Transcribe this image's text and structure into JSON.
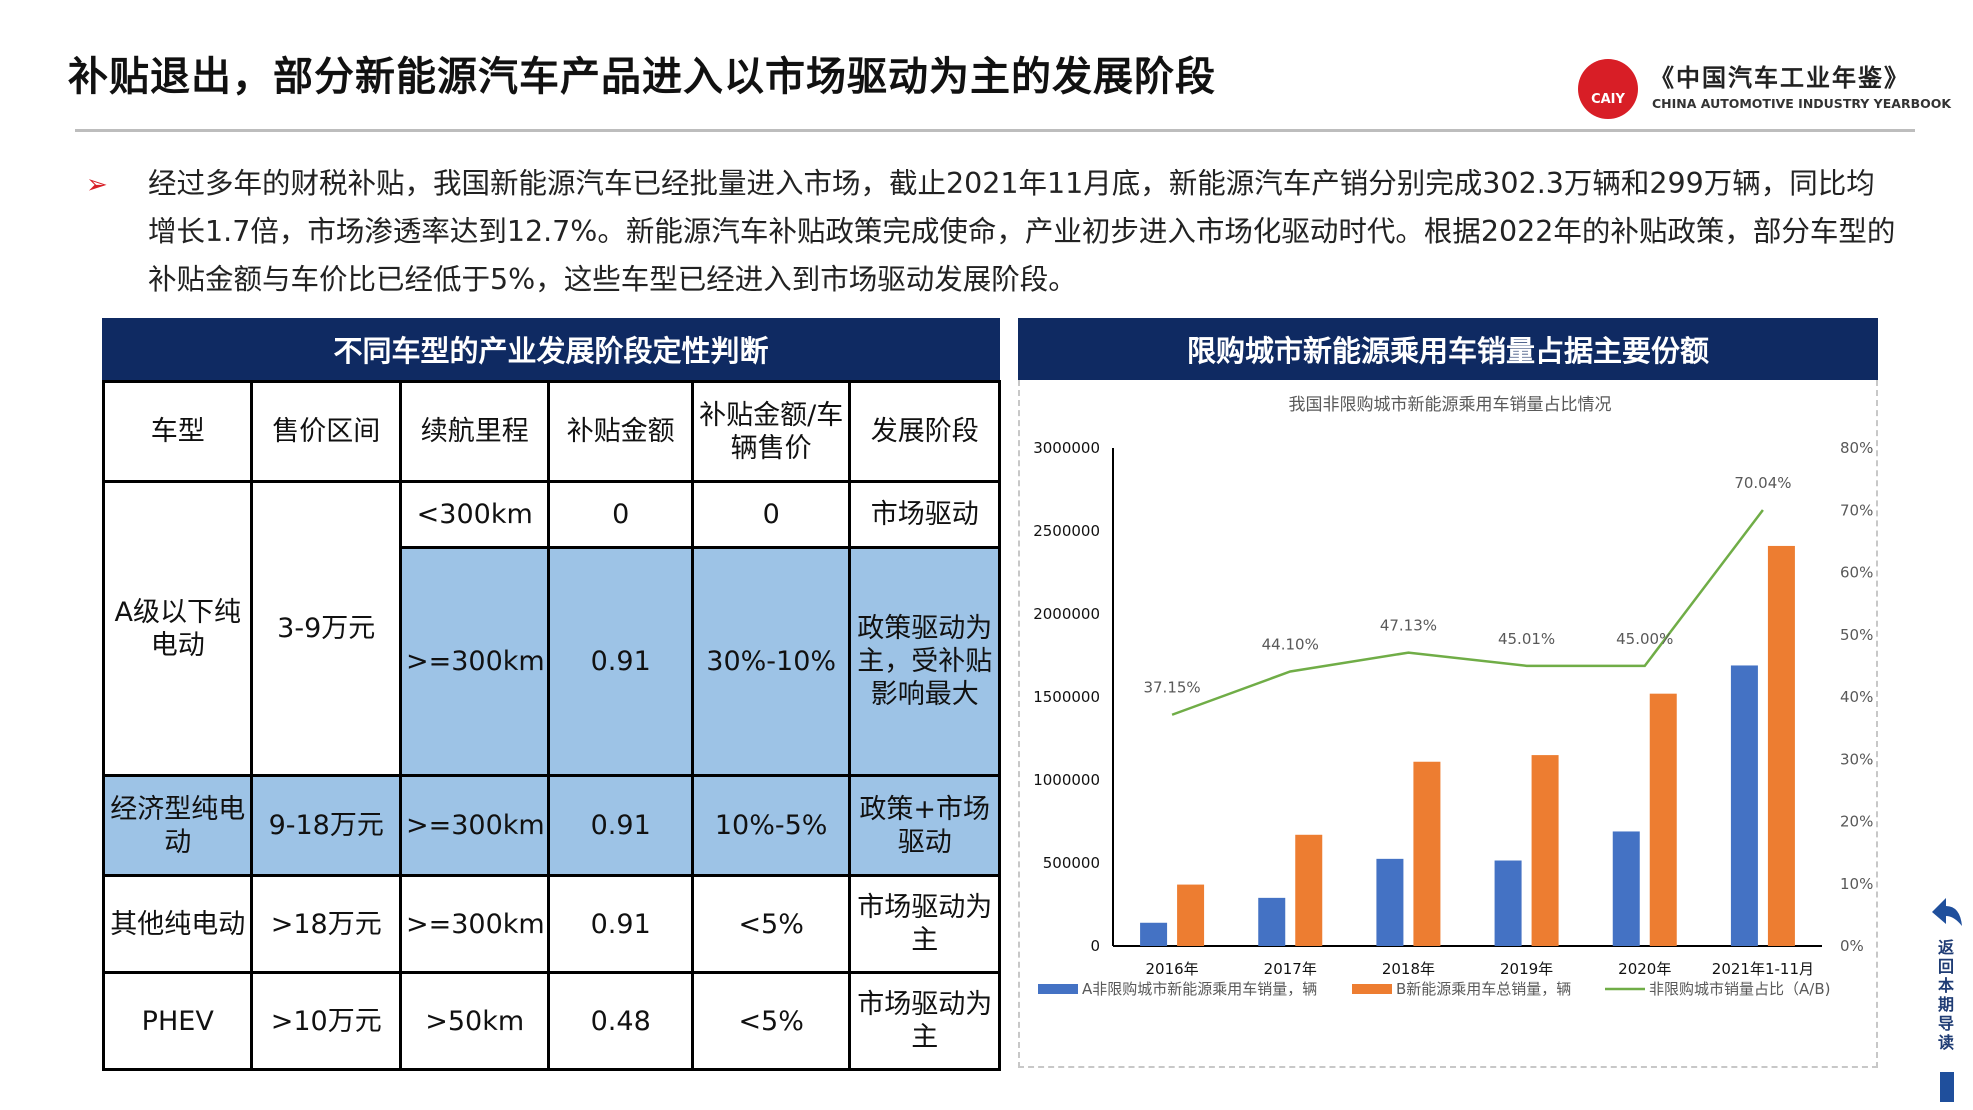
{
  "header": {
    "title": "补贴退出，部分新能源汽车产品进入以市场驱动为主的发展阶段",
    "logo_badge": "CAIY",
    "logo_cn": "《中国汽车工业年鉴》",
    "logo_en": "CHINA AUTOMOTIVE INDUSTRY YEARBOOK"
  },
  "intro": {
    "bullet": "➢",
    "text": "经过多年的财税补贴，我国新能源汽车已经批量进入市场，截止2021年11月底，新能源汽车产销分别完成302.3万辆和299万辆，同比均增长1.7倍，市场渗透率达到12.7%。新能源汽车补贴政策完成使命，产业初步进入市场化驱动时代。根据2022年的补贴政策，部分车型的补贴金额与车价比已经低于5%，这些车型已经进入到市场驱动发展阶段。"
  },
  "table_panel": {
    "title": "不同车型的产业发展阶段定性判断",
    "headers": [
      "车型",
      "售价区间",
      "续航里程",
      "补贴金额",
      "补贴金额/车辆售价",
      "发展阶段"
    ],
    "rows": {
      "a_class": {
        "type": "A级以下纯电动",
        "price": "3-9万元",
        "sub1": {
          "range": "<300km",
          "subsidy": "0",
          "ratio": "0",
          "stage": "市场驱动"
        },
        "sub2": {
          "range": ">=300km",
          "subsidy": "0.91",
          "ratio": "30%-10%",
          "stage": "政策驱动为主，受补贴影响最大"
        }
      },
      "economy": {
        "type": "经济型纯电动",
        "price": "9-18万元",
        "range": ">=300km",
        "subsidy": "0.91",
        "ratio": "10%-5%",
        "stage": "政策+市场驱动"
      },
      "other": {
        "type": "其他纯电动",
        "price": ">18万元",
        "range": ">=300km",
        "subsidy": "0.91",
        "ratio": "<5%",
        "stage": "市场驱动为主"
      },
      "phev": {
        "type": "PHEV",
        "price": ">10万元",
        "range": ">50km",
        "subsidy": "0.48",
        "ratio": "<5%",
        "stage": "市场驱动为主"
      }
    }
  },
  "chart_panel": {
    "title": "限购城市新能源乘用车销量占据主要份额"
  },
  "chart_data": {
    "type": "bar",
    "title": "我国非限购城市新能源乘用车销量占比情况",
    "categories": [
      "2016年",
      "2017年",
      "2018年",
      "2019年",
      "2020年",
      "2021年1-11月"
    ],
    "series": [
      {
        "name": "A非限购城市新能源乘用车销量，辆",
        "type": "bar",
        "color": "#4472c4",
        "values": [
          140000,
          290000,
          525000,
          515000,
          690000,
          1690000
        ]
      },
      {
        "name": "B新能源乘用车总销量，辆",
        "type": "bar",
        "color": "#ed7d31",
        "values": [
          370000,
          670000,
          1110000,
          1150000,
          1520000,
          2410000
        ]
      },
      {
        "name": "非限购城市销量占比（A/B)",
        "type": "line",
        "axis": "right",
        "color": "#70ad47",
        "values": [
          37.15,
          44.1,
          47.13,
          45.01,
          45.0,
          70.04
        ],
        "labels": [
          "37.15%",
          "44.10%",
          "47.13%",
          "45.01%",
          "45.00%",
          "70.04%"
        ]
      }
    ],
    "y_left": {
      "min": 0,
      "max": 3000000,
      "ticks": [
        "0",
        "500000",
        "1000000",
        "1500000",
        "2000000",
        "2500000",
        "3000000"
      ]
    },
    "y_right": {
      "min": 0,
      "max": 80,
      "ticks": [
        "0%",
        "10%",
        "20%",
        "30%",
        "40%",
        "50%",
        "60%",
        "70%",
        "80%"
      ]
    },
    "legend_position": "bottom",
    "grid": false
  },
  "nav": {
    "back_label": "返回本期导读"
  }
}
